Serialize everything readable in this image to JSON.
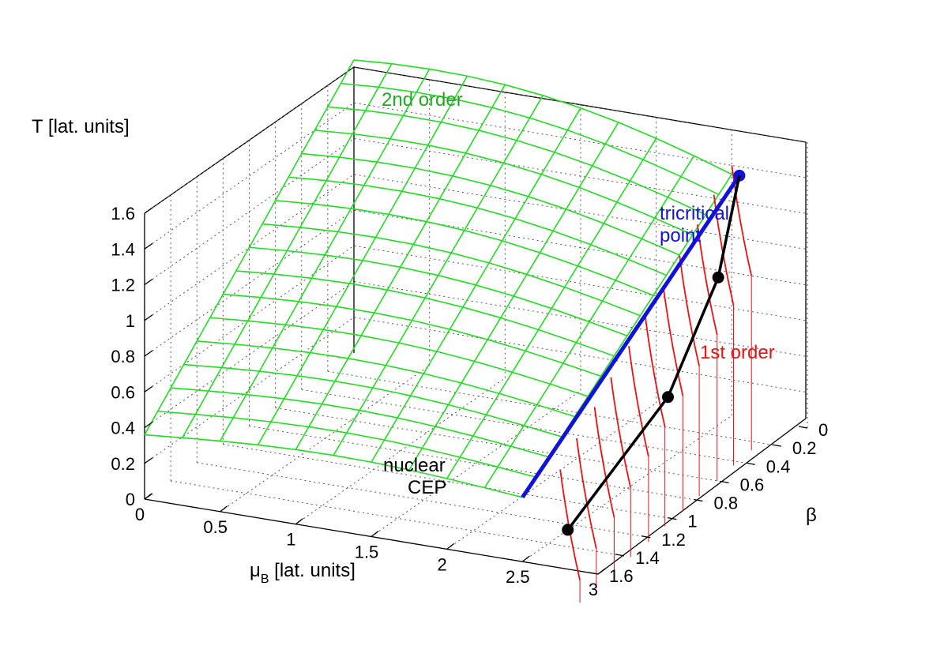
{
  "chart_data": {
    "type": "surface3d",
    "z_axis_label": "T [lat. units]",
    "x_axis_label_main": "μ",
    "x_axis_label_sub": "B",
    "x_axis_label_rest": " [lat. units]",
    "y_axis_label": "β",
    "x_ticks": [
      "0",
      "0.5",
      "1",
      "1.5",
      "2",
      "2.5",
      "3"
    ],
    "y_ticks": [
      "0",
      "0.2",
      "0.4",
      "0.6",
      "0.8",
      "1",
      "1.2",
      "1.4",
      "1.6"
    ],
    "z_ticks": [
      "0",
      "0.2",
      "0.4",
      "0.6",
      "0.8",
      "1",
      "1.2",
      "1.4",
      "1.6"
    ],
    "x_range": [
      0,
      3
    ],
    "y_range": [
      0,
      1.6
    ],
    "z_range": [
      0,
      1.6
    ],
    "grid": true,
    "annotations": {
      "second_order": "2nd order",
      "first_order": "1st order",
      "tricritical_line1": "tricritical",
      "tricritical_line2": "point",
      "nuclear_line1": "nuclear",
      "nuclear_line2": "CEP"
    },
    "surface_second_order": {
      "mu": [
        0.0,
        0.25,
        0.5,
        0.75,
        1.0,
        1.25,
        1.5,
        1.75,
        2.0,
        2.25,
        2.5
      ],
      "beta": [
        0.0,
        0.1,
        0.2,
        0.3,
        0.4,
        0.5,
        0.6,
        0.7,
        0.8,
        0.9,
        1.0,
        1.1,
        1.2,
        1.3,
        1.4,
        1.5,
        1.6
      ],
      "T_at_mu0": [
        1.64,
        1.56,
        1.48,
        1.4,
        1.32,
        1.24,
        1.16,
        1.08,
        1.0,
        0.92,
        0.84,
        0.76,
        0.68,
        0.6,
        0.52,
        0.44,
        0.36
      ]
    },
    "first_order_line": {
      "mu": [
        2.55,
        2.57,
        2.6,
        2.62,
        2.65,
        2.67,
        2.7,
        2.72,
        2.75,
        2.77,
        2.8
      ],
      "beta": [
        0.0,
        0.16,
        0.32,
        0.48,
        0.64,
        0.8,
        0.96,
        1.12,
        1.28,
        1.44,
        1.6
      ],
      "T": [
        1.35,
        1.27,
        1.19,
        1.1,
        1.02,
        0.93,
        0.85,
        0.76,
        0.68,
        0.59,
        0.5
      ]
    },
    "tricritical_line": {
      "start": {
        "mu": 2.5,
        "beta": 1.6,
        "T": 0.36
      },
      "end": {
        "mu": 2.55,
        "beta": 0.0,
        "T": 1.35
      }
    },
    "cep_line": [
      {
        "mu": 2.55,
        "beta": 0.0,
        "T": 1.35
      },
      {
        "mu": 2.67,
        "beta": 0.3,
        "T": 0.95
      },
      {
        "mu": 2.77,
        "beta": 0.8,
        "T": 0.55
      },
      {
        "mu": 2.8,
        "beta": 1.6,
        "T": 0.22
      }
    ],
    "colors": {
      "surface": "#22dd22",
      "first_order": "#ee1111",
      "tricritical": "#1111dd",
      "cep": "#000000"
    }
  }
}
